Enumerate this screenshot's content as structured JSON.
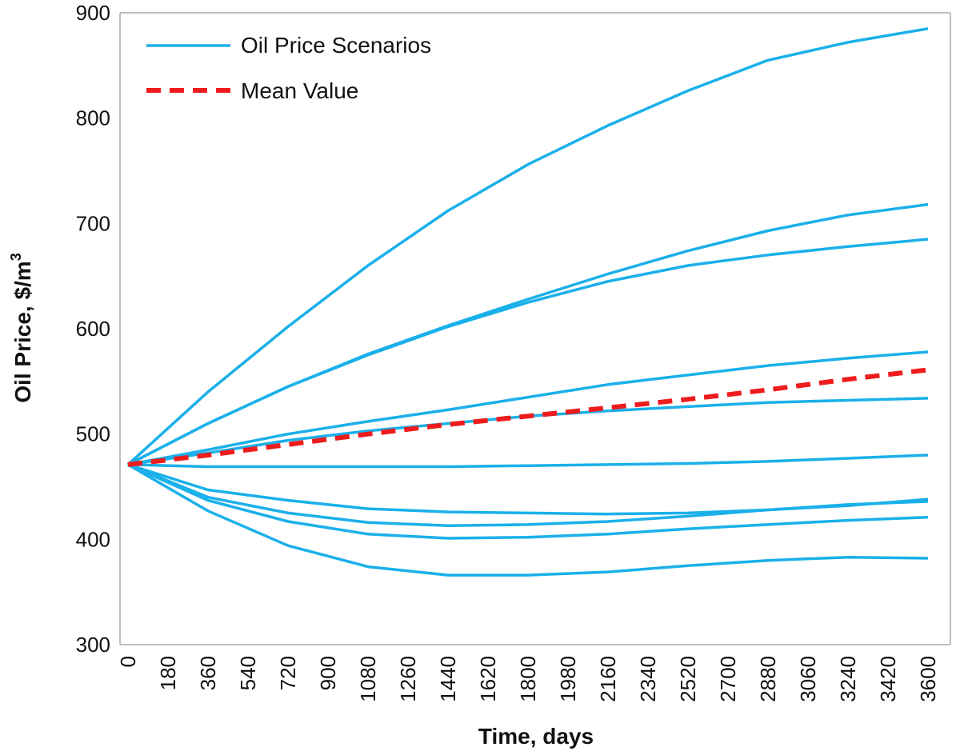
{
  "chart_data": {
    "type": "line",
    "xlabel": "Time, days",
    "ylabel": "Oil Price, $/m",
    "ylabel_superscript": "3",
    "xlim": [
      0,
      3600
    ],
    "ylim": [
      300,
      900
    ],
    "x_ticks": [
      "0",
      "180",
      "360",
      "540",
      "720",
      "900",
      "1080",
      "1260",
      "1440",
      "1620",
      "1800",
      "1980",
      "2160",
      "2340",
      "2520",
      "2700",
      "2880",
      "3060",
      "3240",
      "3420",
      "3600"
    ],
    "y_ticks": [
      "300",
      "400",
      "500",
      "600",
      "700",
      "800",
      "900"
    ],
    "grid": false,
    "legend_position": "top-left",
    "colors": {
      "scenario": "#1ab0ea",
      "mean": "#ee1c1c"
    },
    "legend": [
      {
        "label": "Oil Price Scenarios",
        "style": "solid",
        "color": "#1ab0ea"
      },
      {
        "label": "Mean Value",
        "style": "dashed",
        "color": "#ee1c1c"
      }
    ],
    "x": [
      0,
      360,
      720,
      1080,
      1440,
      1800,
      2160,
      2520,
      2880,
      3240,
      3600
    ],
    "series": [
      {
        "group": "scenario",
        "values": [
          471,
          540,
          602,
          660,
          712,
          756,
          793,
          826,
          855,
          872,
          885
        ]
      },
      {
        "group": "scenario",
        "values": [
          471,
          510,
          545,
          576,
          603,
          628,
          652,
          674,
          693,
          708,
          718
        ]
      },
      {
        "group": "scenario",
        "values": [
          471,
          510,
          545,
          575,
          602,
          625,
          645,
          660,
          670,
          678,
          685
        ]
      },
      {
        "group": "scenario",
        "values": [
          471,
          485,
          500,
          512,
          523,
          535,
          547,
          556,
          565,
          572,
          578
        ]
      },
      {
        "group": "scenario",
        "values": [
          471,
          482,
          494,
          503,
          510,
          517,
          522,
          526,
          530,
          532,
          534
        ]
      },
      {
        "group": "scenario",
        "values": [
          471,
          469,
          469,
          469,
          469,
          470,
          471,
          472,
          474,
          477,
          480
        ]
      },
      {
        "group": "scenario",
        "values": [
          471,
          447,
          437,
          429,
          426,
          425,
          424,
          425,
          428,
          432,
          438
        ]
      },
      {
        "group": "scenario",
        "values": [
          471,
          440,
          425,
          416,
          413,
          414,
          417,
          422,
          428,
          433,
          436
        ]
      },
      {
        "group": "scenario",
        "values": [
          471,
          437,
          417,
          405,
          401,
          402,
          405,
          410,
          414,
          418,
          421
        ]
      },
      {
        "group": "scenario",
        "values": [
          471,
          427,
          394,
          374,
          366,
          366,
          369,
          375,
          380,
          383,
          382
        ]
      },
      {
        "group": "mean",
        "values": [
          471,
          480,
          490,
          500,
          509,
          517,
          525,
          533,
          542,
          552,
          561
        ]
      }
    ]
  }
}
